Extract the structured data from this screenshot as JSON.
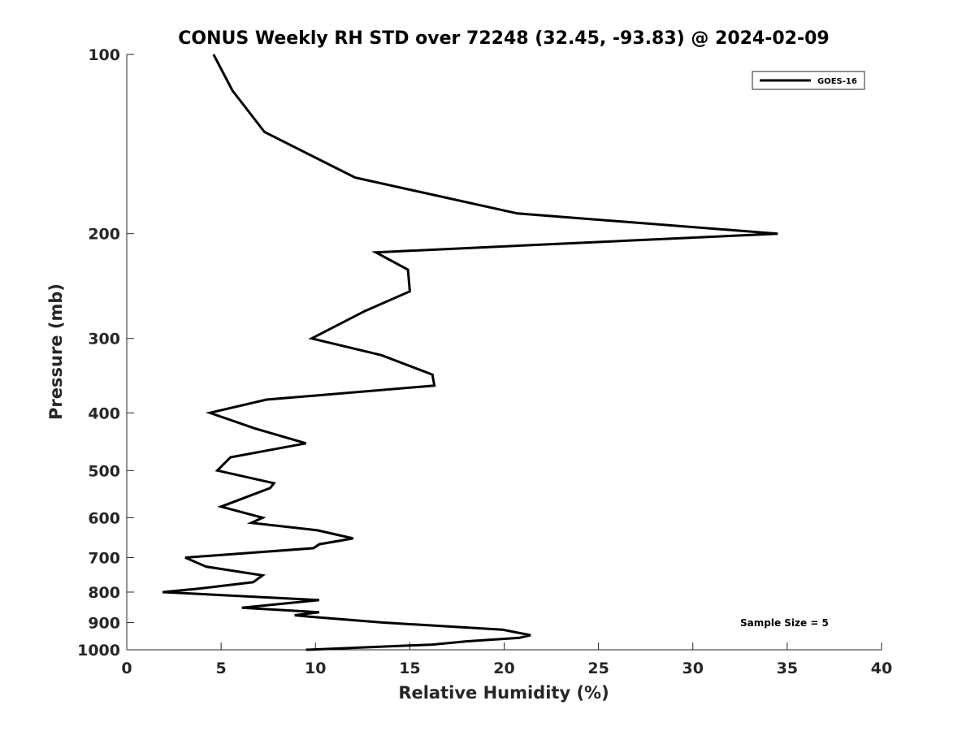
{
  "chart_data": {
    "type": "line",
    "title": "CONUS Weekly RH STD over 72248 (32.45, -93.83) @ 2024-02-09",
    "xlabel": "Relative Humidity (%)",
    "ylabel": "Pressure (mb)",
    "xlim": [
      0,
      40
    ],
    "ylim": [
      100,
      1000
    ],
    "y_scale": "log",
    "y_reversed": true,
    "grid": false,
    "legend_position": "top-right",
    "x_ticks": [
      "0",
      "5",
      "10",
      "15",
      "20",
      "25",
      "30",
      "35",
      "40"
    ],
    "y_ticks": [
      "100",
      "200",
      "300",
      "400",
      "500",
      "600",
      "700",
      "800",
      "900",
      "1000"
    ],
    "annotation": "Sample Size = 5",
    "series": [
      {
        "name": "GOES-16",
        "color": "#000000",
        "points": [
          [
            4.6,
            100
          ],
          [
            5.6,
            115
          ],
          [
            7.3,
            135
          ],
          [
            12.1,
            161
          ],
          [
            20.7,
            185
          ],
          [
            34.5,
            200
          ],
          [
            13.2,
            215
          ],
          [
            14.9,
            230
          ],
          [
            15.0,
            250
          ],
          [
            12.6,
            270
          ],
          [
            9.8,
            300
          ],
          [
            13.5,
            320
          ],
          [
            16.2,
            345
          ],
          [
            16.3,
            360
          ],
          [
            7.4,
            380
          ],
          [
            4.4,
            400
          ],
          [
            6.8,
            425
          ],
          [
            9.5,
            450
          ],
          [
            5.5,
            475
          ],
          [
            4.8,
            500
          ],
          [
            7.8,
            525
          ],
          [
            7.6,
            535
          ],
          [
            6.6,
            550
          ],
          [
            5.0,
            575
          ],
          [
            7.2,
            600
          ],
          [
            6.6,
            612
          ],
          [
            10.1,
            630
          ],
          [
            12.0,
            650
          ],
          [
            10.2,
            665
          ],
          [
            9.9,
            675
          ],
          [
            3.1,
            700
          ],
          [
            4.2,
            725
          ],
          [
            7.2,
            750
          ],
          [
            6.7,
            770
          ],
          [
            3.7,
            790
          ],
          [
            1.9,
            800
          ],
          [
            10.2,
            825
          ],
          [
            6.1,
            850
          ],
          [
            10.2,
            865
          ],
          [
            8.9,
            875
          ],
          [
            9.7,
            880
          ],
          [
            13.6,
            900
          ],
          [
            19.9,
            925
          ],
          [
            21.4,
            945
          ],
          [
            20.8,
            955
          ],
          [
            18.0,
            968
          ],
          [
            16.2,
            980
          ],
          [
            9.5,
            1000
          ]
        ]
      }
    ]
  }
}
